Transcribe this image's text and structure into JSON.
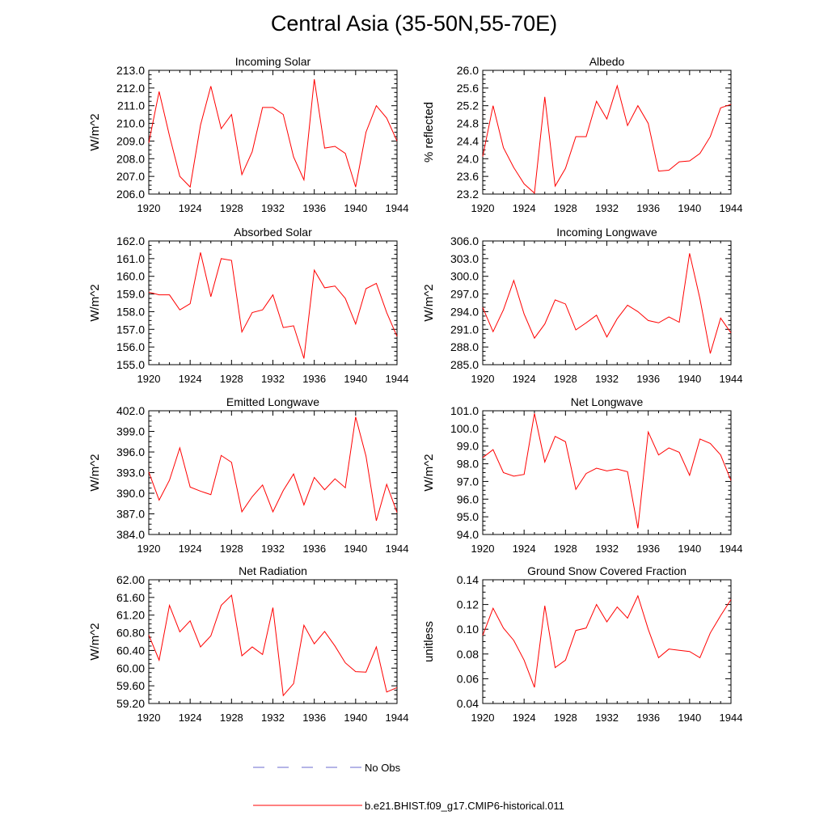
{
  "title": "Central Asia (35-50N,55-70E)",
  "legend": {
    "obs_label": "No Obs",
    "obs_color": "#6b6bcf",
    "model_label": "b.e21.BHIST.f09_g17.CMIP6-historical.011",
    "model_color": "#ff0000"
  },
  "chart_data": [
    {
      "type": "line",
      "title": "Incoming Solar",
      "ylabel": "W/m^2",
      "xlim": [
        1920,
        1944
      ],
      "ylim": [
        206.0,
        213.0
      ],
      "xticks": [
        1920,
        1924,
        1928,
        1932,
        1936,
        1940,
        1944
      ],
      "yticks": [
        "206.0",
        "207.0",
        "208.0",
        "209.0",
        "210.0",
        "211.0",
        "212.0",
        "213.0"
      ],
      "x": [
        1920,
        1921,
        1922,
        1923,
        1924,
        1925,
        1926,
        1927,
        1928,
        1929,
        1930,
        1931,
        1932,
        1933,
        1934,
        1935,
        1936,
        1937,
        1938,
        1939,
        1940,
        1941,
        1942,
        1943,
        1944
      ],
      "series": [
        {
          "color": "#ff0000",
          "values": [
            208.9,
            211.8,
            209.3,
            207.0,
            206.4,
            209.9,
            212.1,
            209.7,
            210.5,
            207.1,
            208.4,
            210.9,
            210.9,
            210.5,
            208.1,
            206.8,
            212.5,
            208.6,
            208.7,
            208.3,
            206.4,
            209.5,
            211.0,
            210.3,
            209.0
          ]
        }
      ]
    },
    {
      "type": "line",
      "title": "Albedo",
      "ylabel": "% reflected",
      "xlim": [
        1920,
        1944
      ],
      "ylim": [
        23.2,
        26.0
      ],
      "xticks": [
        1920,
        1924,
        1928,
        1932,
        1936,
        1940,
        1944
      ],
      "yticks": [
        "23.2",
        "23.6",
        "24.0",
        "24.4",
        "24.8",
        "25.2",
        "25.6",
        "26.0"
      ],
      "x": [
        1920,
        1921,
        1922,
        1923,
        1924,
        1925,
        1926,
        1927,
        1928,
        1929,
        1930,
        1931,
        1932,
        1933,
        1934,
        1935,
        1936,
        1937,
        1938,
        1939,
        1940,
        1941,
        1942,
        1943,
        1944
      ],
      "series": [
        {
          "color": "#ff0000",
          "values": [
            24.05,
            25.2,
            24.25,
            23.8,
            23.43,
            23.22,
            25.4,
            23.38,
            23.78,
            24.5,
            24.5,
            25.3,
            24.9,
            25.65,
            24.75,
            25.2,
            24.8,
            23.72,
            23.74,
            23.93,
            23.95,
            24.12,
            24.5,
            25.15,
            25.23
          ]
        }
      ]
    },
    {
      "type": "line",
      "title": "Absorbed Solar",
      "ylabel": "W/m^2",
      "xlim": [
        1920,
        1944
      ],
      "ylim": [
        155.0,
        162.0
      ],
      "xticks": [
        1920,
        1924,
        1928,
        1932,
        1936,
        1940,
        1944
      ],
      "yticks": [
        "155.0",
        "156.0",
        "157.0",
        "158.0",
        "159.0",
        "160.0",
        "161.0",
        "162.0"
      ],
      "x": [
        1920,
        1921,
        1922,
        1923,
        1924,
        1925,
        1926,
        1927,
        1928,
        1929,
        1930,
        1931,
        1932,
        1933,
        1934,
        1935,
        1936,
        1937,
        1938,
        1939,
        1940,
        1941,
        1942,
        1943,
        1944
      ],
      "series": [
        {
          "color": "#ff0000",
          "values": [
            159.1,
            158.95,
            158.95,
            158.1,
            158.45,
            161.35,
            158.85,
            161.0,
            160.9,
            156.85,
            157.95,
            158.1,
            158.95,
            157.1,
            157.2,
            155.35,
            160.35,
            159.35,
            159.45,
            158.75,
            157.3,
            159.3,
            159.6,
            157.95,
            156.6
          ]
        }
      ]
    },
    {
      "type": "line",
      "title": "Incoming Longwave",
      "ylabel": "W/m^2",
      "xlim": [
        1920,
        1944
      ],
      "ylim": [
        285.0,
        306.0
      ],
      "xticks": [
        1920,
        1924,
        1928,
        1932,
        1936,
        1940,
        1944
      ],
      "yticks": [
        "285.0",
        "288.0",
        "291.0",
        "294.0",
        "297.0",
        "300.0",
        "303.0",
        "306.0"
      ],
      "x": [
        1920,
        1921,
        1922,
        1923,
        1924,
        1925,
        1926,
        1927,
        1928,
        1929,
        1930,
        1931,
        1932,
        1933,
        1934,
        1935,
        1936,
        1937,
        1938,
        1939,
        1940,
        1941,
        1942,
        1943,
        1944
      ],
      "series": [
        {
          "color": "#ff0000",
          "values": [
            294.7,
            290.6,
            294.3,
            299.3,
            293.6,
            289.5,
            291.9,
            296.0,
            295.3,
            290.9,
            292.1,
            293.4,
            289.7,
            292.8,
            295.1,
            294.0,
            292.5,
            292.1,
            293.1,
            292.2,
            303.9,
            296.2,
            286.9,
            292.9,
            290.4
          ]
        }
      ]
    },
    {
      "type": "line",
      "title": "Emitted Longwave",
      "ylabel": "W/m^2",
      "xlim": [
        1920,
        1944
      ],
      "ylim": [
        384.0,
        402.0
      ],
      "xticks": [
        1920,
        1924,
        1928,
        1932,
        1936,
        1940,
        1944
      ],
      "yticks": [
        "384.0",
        "387.0",
        "390.0",
        "393.0",
        "396.0",
        "399.0",
        "402.0"
      ],
      "x": [
        1920,
        1921,
        1922,
        1923,
        1924,
        1925,
        1926,
        1927,
        1928,
        1929,
        1930,
        1931,
        1932,
        1933,
        1934,
        1935,
        1936,
        1937,
        1938,
        1939,
        1940,
        1941,
        1942,
        1943,
        1944
      ],
      "series": [
        {
          "color": "#ff0000",
          "values": [
            393.1,
            389.0,
            391.9,
            396.6,
            390.9,
            390.3,
            389.8,
            395.5,
            394.5,
            387.3,
            389.5,
            391.2,
            387.3,
            390.4,
            392.8,
            388.3,
            392.3,
            390.5,
            392.1,
            390.8,
            401.1,
            395.4,
            386.0,
            391.3,
            387.2
          ]
        }
      ]
    },
    {
      "type": "line",
      "title": "Net Longwave",
      "ylabel": "W/m^2",
      "xlim": [
        1920,
        1944
      ],
      "ylim": [
        94.0,
        101.0
      ],
      "xticks": [
        1920,
        1924,
        1928,
        1932,
        1936,
        1940,
        1944
      ],
      "yticks": [
        "94.0",
        "95.0",
        "96.0",
        "97.0",
        "98.0",
        "99.0",
        "100.0",
        "101.0"
      ],
      "x": [
        1920,
        1921,
        1922,
        1923,
        1924,
        1925,
        1926,
        1927,
        1928,
        1929,
        1930,
        1931,
        1932,
        1933,
        1934,
        1935,
        1936,
        1937,
        1938,
        1939,
        1940,
        1941,
        1942,
        1943,
        1944
      ],
      "series": [
        {
          "color": "#ff0000",
          "values": [
            98.35,
            98.8,
            97.5,
            97.3,
            97.4,
            100.85,
            98.1,
            99.55,
            99.25,
            96.55,
            97.45,
            97.75,
            97.6,
            97.7,
            97.55,
            94.35,
            99.8,
            98.5,
            98.9,
            98.65,
            97.35,
            99.4,
            99.15,
            98.5,
            97.05
          ]
        }
      ]
    },
    {
      "type": "line",
      "title": "Net Radiation",
      "ylabel": "W/m^2",
      "xlim": [
        1920,
        1944
      ],
      "ylim": [
        59.2,
        62.0
      ],
      "xticks": [
        1920,
        1924,
        1928,
        1932,
        1936,
        1940,
        1944
      ],
      "yticks": [
        "59.20",
        "59.60",
        "60.00",
        "60.40",
        "60.80",
        "61.20",
        "61.60",
        "62.00"
      ],
      "x": [
        1920,
        1921,
        1922,
        1923,
        1924,
        1925,
        1926,
        1927,
        1928,
        1929,
        1930,
        1931,
        1932,
        1933,
        1934,
        1935,
        1936,
        1937,
        1938,
        1939,
        1940,
        1941,
        1942,
        1943,
        1944
      ],
      "series": [
        {
          "color": "#ff0000",
          "values": [
            60.75,
            60.18,
            61.42,
            60.82,
            61.07,
            60.48,
            60.73,
            61.42,
            61.65,
            60.28,
            60.48,
            60.31,
            61.37,
            59.38,
            59.65,
            60.97,
            60.55,
            60.83,
            60.5,
            60.12,
            59.92,
            59.91,
            60.48,
            59.46,
            59.56
          ]
        }
      ]
    },
    {
      "type": "line",
      "title": "Ground Snow Covered Fraction",
      "ylabel": "unitless",
      "xlim": [
        1920,
        1944
      ],
      "ylim": [
        0.04,
        0.14
      ],
      "xticks": [
        1920,
        1924,
        1928,
        1932,
        1936,
        1940,
        1944
      ],
      "yticks": [
        "0.04",
        "0.06",
        "0.08",
        "0.10",
        "0.12",
        "0.14"
      ],
      "x": [
        1920,
        1921,
        1922,
        1923,
        1924,
        1925,
        1926,
        1927,
        1928,
        1929,
        1930,
        1931,
        1932,
        1933,
        1934,
        1935,
        1936,
        1937,
        1938,
        1939,
        1940,
        1941,
        1942,
        1943,
        1944
      ],
      "series": [
        {
          "color": "#ff0000",
          "values": [
            0.095,
            0.117,
            0.101,
            0.091,
            0.075,
            0.053,
            0.119,
            0.069,
            0.075,
            0.099,
            0.101,
            0.12,
            0.106,
            0.118,
            0.109,
            0.127,
            0.1,
            0.077,
            0.084,
            0.083,
            0.082,
            0.077,
            0.097,
            0.111,
            0.124
          ]
        }
      ]
    }
  ]
}
